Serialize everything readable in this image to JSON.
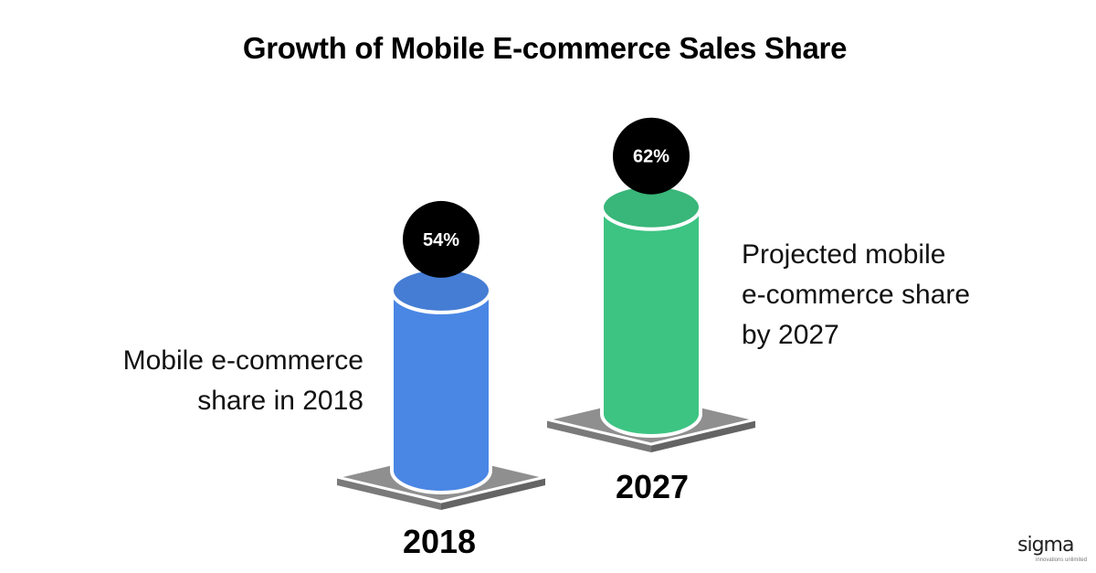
{
  "chart_data": {
    "type": "bar",
    "title": "Growth of Mobile E-commerce Sales Share",
    "categories": [
      "2018",
      "2027"
    ],
    "values": [
      54,
      62
    ],
    "value_labels": [
      "54%",
      "62%"
    ],
    "unit": "%",
    "descriptions": [
      "Mobile e-commerce\nshare in 2018",
      "Projected mobile\ne-commerce share\nby 2027"
    ],
    "colors": [
      "#4a86e4",
      "#3dc482"
    ],
    "label_bubble_color": "#000000",
    "base_color": "#8f8f8f"
  },
  "logo": {
    "text": "sigma",
    "tagline": "innovations unlimited"
  }
}
